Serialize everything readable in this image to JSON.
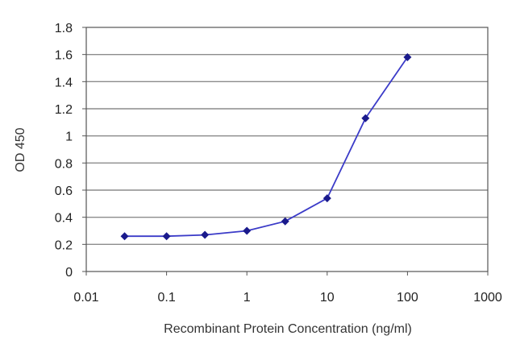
{
  "chart_data": {
    "type": "line",
    "title": "",
    "xlabel": "Recombinant Protein Concentration (ng/ml)",
    "ylabel": "OD 450",
    "x_scale": "log",
    "xlim": [
      0.01,
      1000
    ],
    "ylim": [
      0,
      1.8
    ],
    "x_tick_labels": [
      "0.01",
      "0.1",
      "1",
      "10",
      "100",
      "1000"
    ],
    "x_tick_values": [
      0.01,
      0.1,
      1,
      10,
      100,
      1000
    ],
    "y_tick_labels": [
      "0",
      "0.2",
      "0.4",
      "0.6",
      "0.8",
      "1",
      "1.2",
      "1.4",
      "1.6",
      "1.8"
    ],
    "y_tick_values": [
      0,
      0.2,
      0.4,
      0.6,
      0.8,
      1.0,
      1.2,
      1.4,
      1.6,
      1.8
    ],
    "grid": "horizontal",
    "legend": "none",
    "series": [
      {
        "x": [
          0.03,
          0.1,
          0.3,
          1,
          3,
          10,
          30,
          100
        ],
        "y": [
          0.26,
          0.26,
          0.27,
          0.3,
          0.37,
          0.54,
          1.13,
          1.58
        ]
      }
    ],
    "colors": {
      "line": "#3b3bc8",
      "marker": "#1a1a8c",
      "grid": "#8c8c8c",
      "frame": "#555555"
    }
  }
}
